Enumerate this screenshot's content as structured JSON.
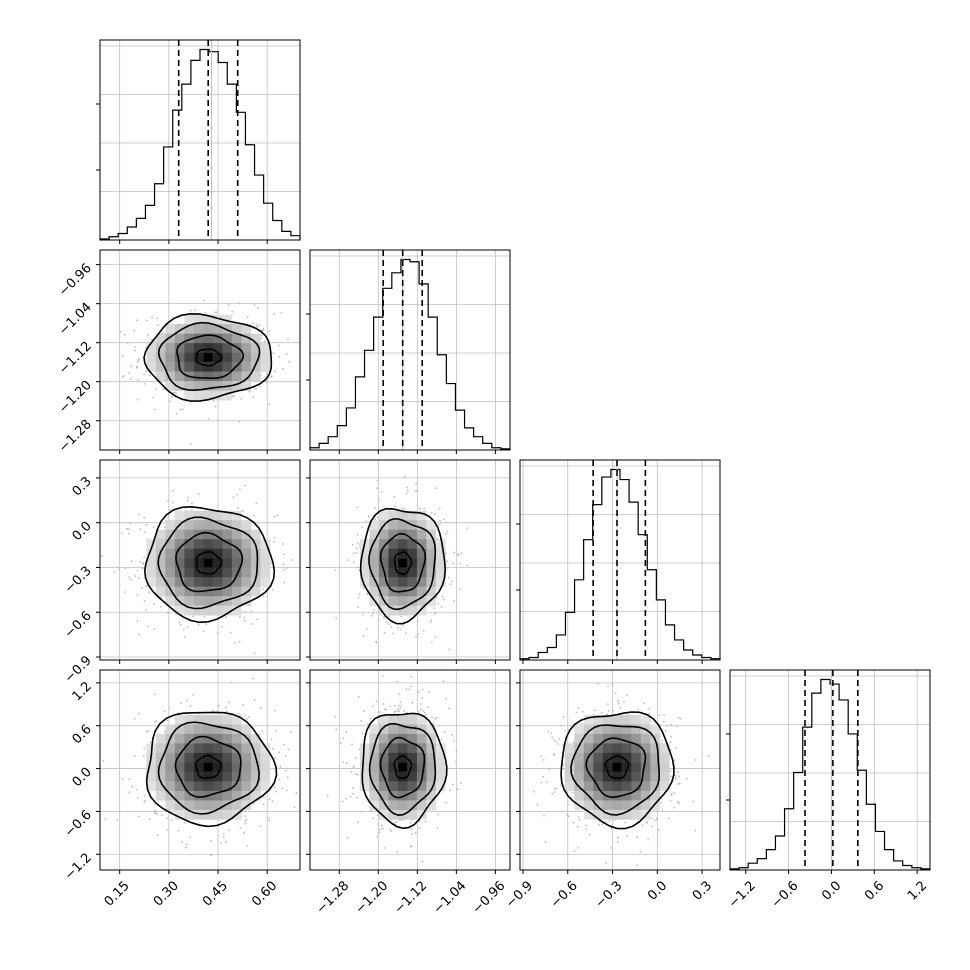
{
  "chart_data": {
    "type": "corner",
    "parameters": 4,
    "axis_ranges": [
      [
        0.09,
        0.7
      ],
      [
        -1.34,
        -0.93
      ],
      [
        -0.92,
        0.42
      ],
      [
        -1.42,
        1.38
      ]
    ],
    "tick_labels": [
      [
        "0.15",
        "0.30",
        "0.45",
        "0.60"
      ],
      [
        "−1.28",
        "−1.20",
        "−1.12",
        "−1.04",
        "−0.96"
      ],
      [
        "−0.9",
        "−0.6",
        "−0.3",
        "0.0",
        "0.3"
      ],
      [
        "−1.2",
        "−0.6",
        "0.0",
        "0.6",
        "1.2"
      ]
    ],
    "tick_values": [
      [
        0.15,
        0.3,
        0.45,
        0.6
      ],
      [
        -1.28,
        -1.2,
        -1.12,
        -1.04,
        -0.96
      ],
      [
        -0.9,
        -0.6,
        -0.3,
        0.0,
        0.3
      ],
      [
        -1.2,
        -0.6,
        0.0,
        0.6,
        1.2
      ]
    ],
    "quantiles": [
      [
        0.33,
        0.42,
        0.51
      ],
      [
        -1.19,
        -1.15,
        -1.11
      ],
      [
        -0.43,
        -0.27,
        -0.08
      ],
      [
        -0.37,
        0.02,
        0.37
      ]
    ],
    "truths": [
      0.43,
      -1.15,
      -0.27,
      0.0
    ],
    "histograms": [
      {
        "bin_start": 0.09,
        "bin_end": 0.7,
        "counts": [
          0.5,
          1.5,
          3,
          6,
          10,
          16,
          26,
          43,
          60,
          72,
          83,
          88,
          87,
          82,
          72,
          59,
          44,
          30,
          17,
          9,
          4,
          2
        ]
      },
      {
        "bin_start": -1.34,
        "bin_end": -0.93,
        "counts": [
          1,
          3,
          6,
          11,
          19,
          33,
          45,
          60,
          73,
          80,
          86,
          85,
          75,
          60,
          43,
          30,
          18,
          10,
          6,
          3,
          1,
          0.5
        ]
      },
      {
        "bin_start": -0.92,
        "bin_end": 0.42,
        "counts": [
          0.5,
          1,
          3,
          5,
          10,
          19,
          32,
          48,
          62,
          73,
          76,
          72,
          63,
          50,
          36,
          24,
          14,
          8,
          4,
          2,
          1,
          0.5
        ]
      },
      {
        "bin_start": -1.42,
        "bin_end": 1.38,
        "counts": [
          0.5,
          1,
          3,
          5,
          9,
          15,
          27,
          43,
          63,
          78,
          84,
          82,
          75,
          60,
          44,
          29,
          17,
          9,
          4,
          2,
          1,
          0.5
        ]
      }
    ],
    "grid": true,
    "colors": {
      "line": "#000000",
      "scatter": "#a6a6a6",
      "grid": "#bfbfbf"
    }
  }
}
